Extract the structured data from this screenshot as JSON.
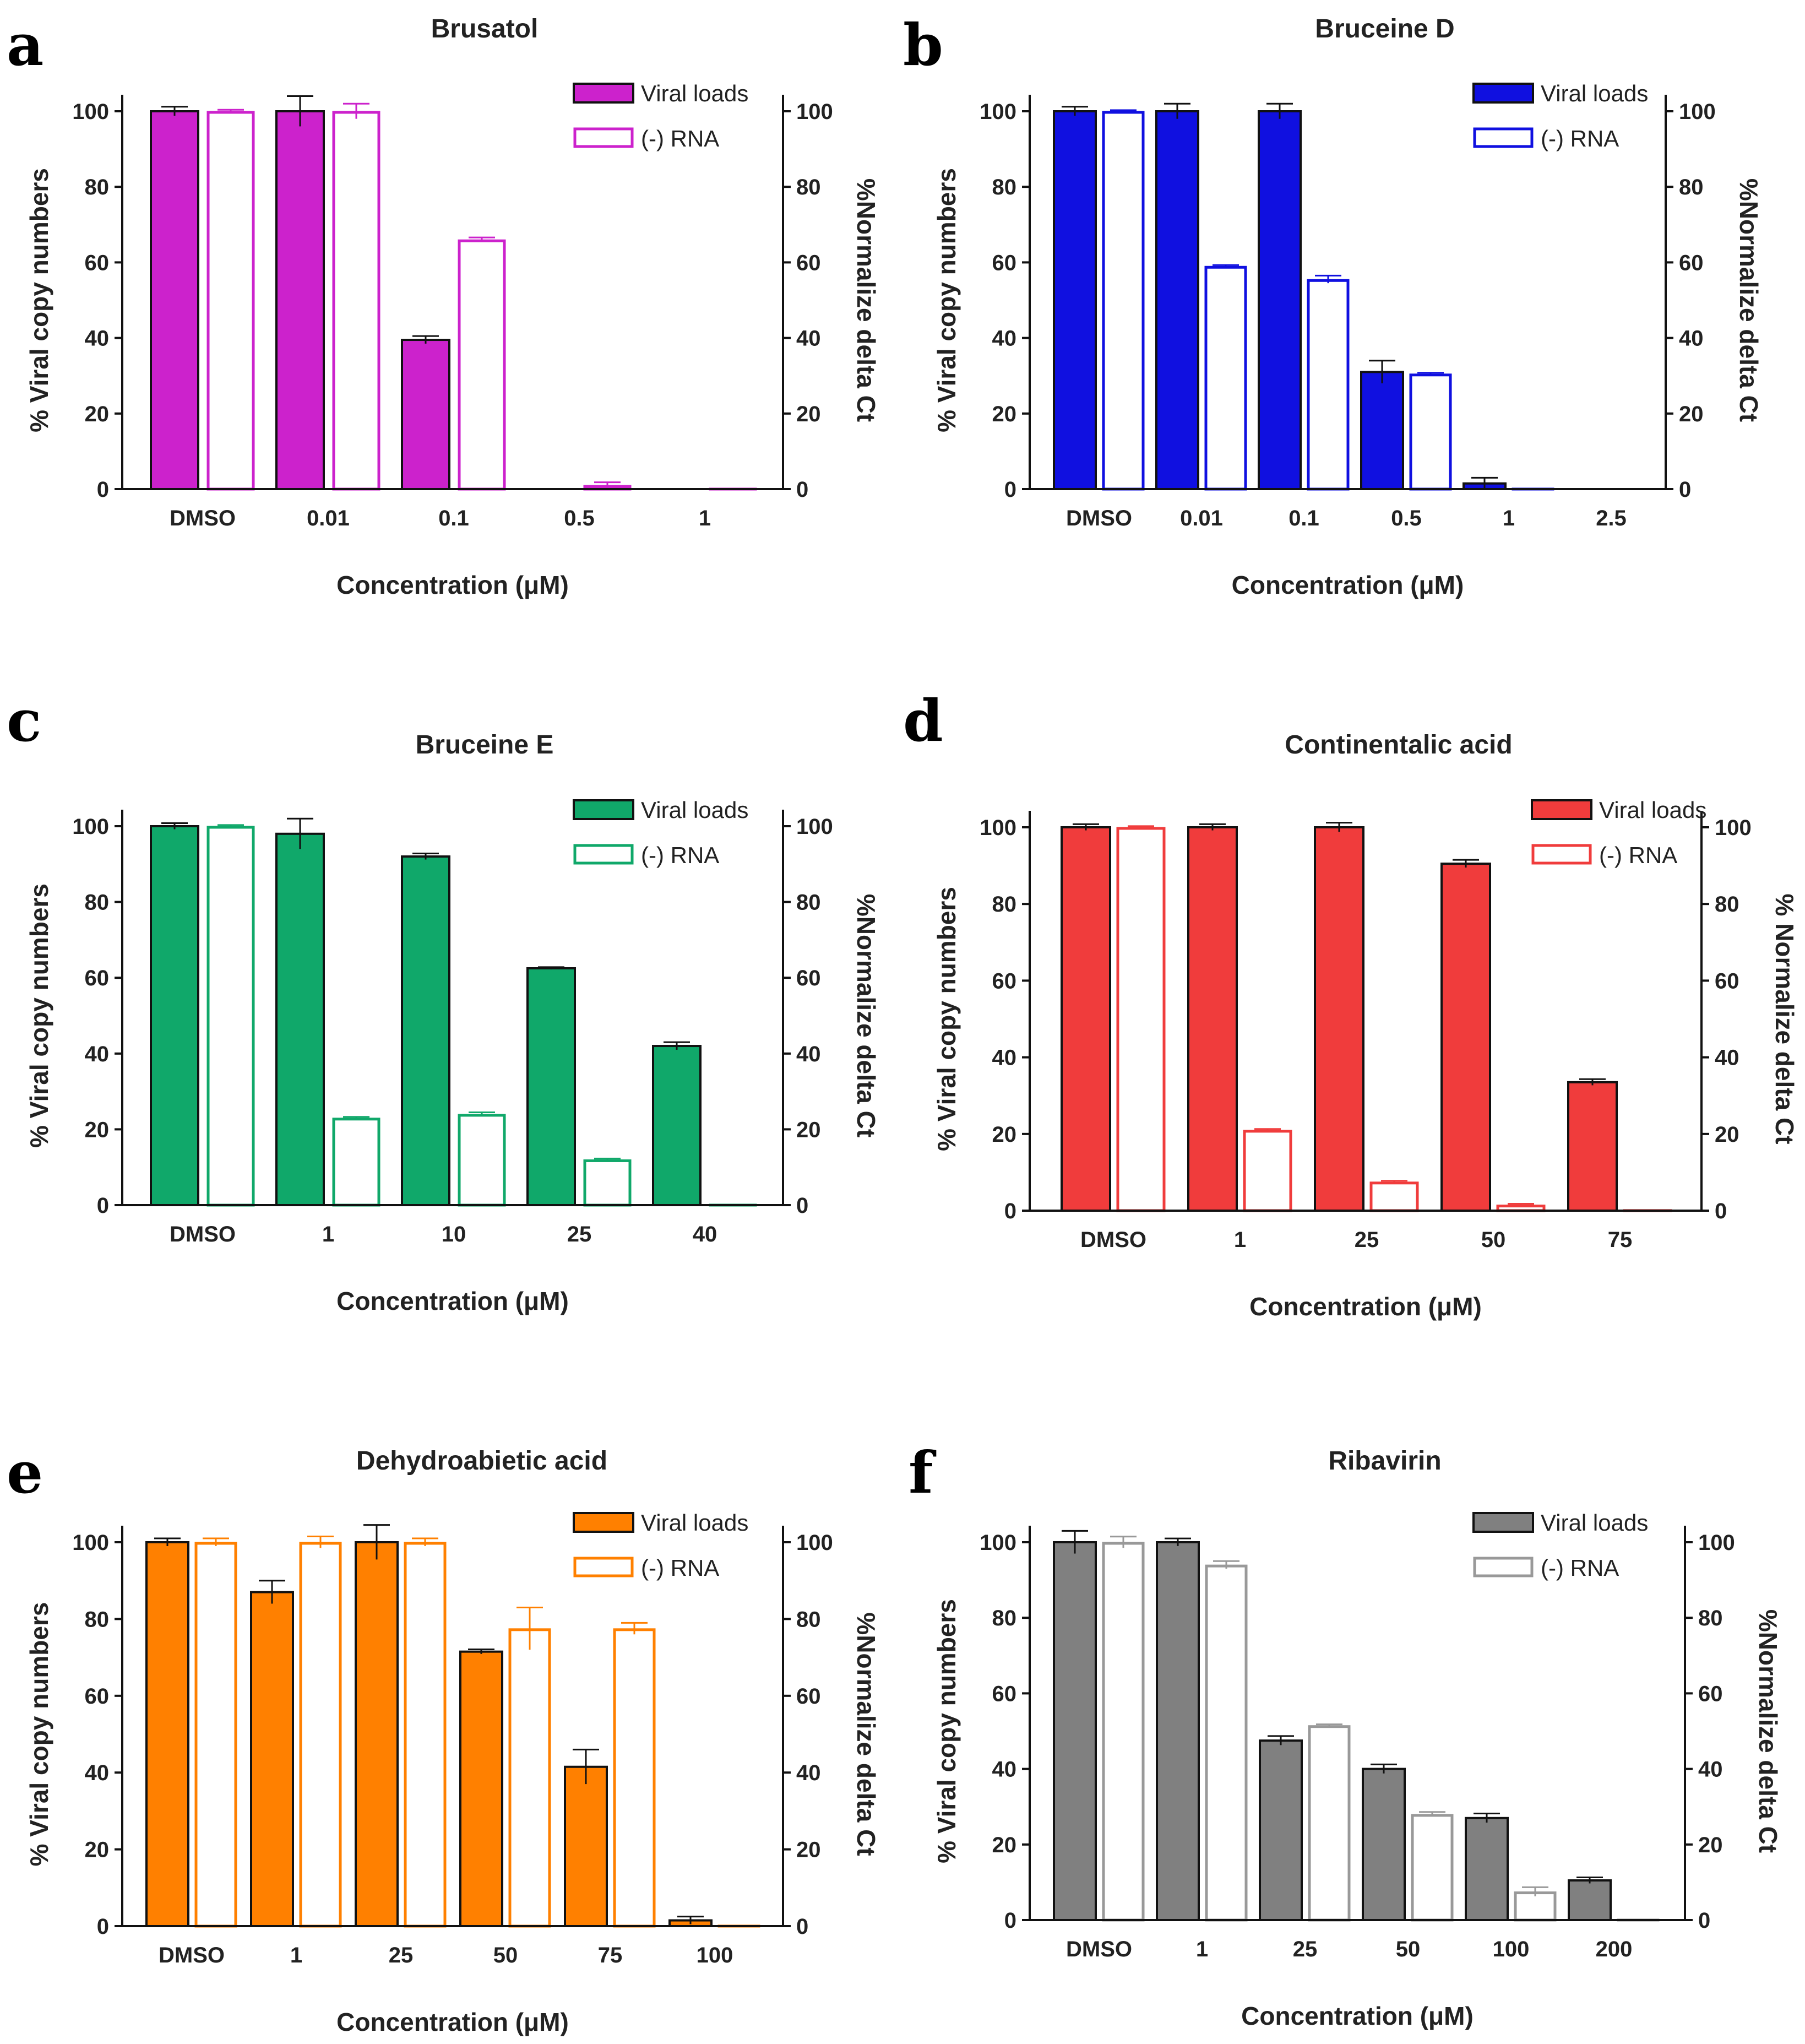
{
  "chart_data": [
    {
      "panel": "a",
      "type": "bar",
      "title": "Brusatol",
      "xlabel": "Concentration (μM)",
      "ylabel": "% Viral copy numbers",
      "ylabel_right": "%Normalize delta Ct",
      "ylim": [
        0,
        100
      ],
      "yticks": [
        0,
        20,
        40,
        60,
        80,
        100
      ],
      "categories": [
        "DMSO",
        "0.01",
        "0.1",
        "0.5",
        "1"
      ],
      "colors": {
        "fill": "#CC22CC",
        "outline": "#CC22CC"
      },
      "legend": [
        "Viral loads",
        "(-) RNA"
      ],
      "series": [
        {
          "name": "Viral loads",
          "style": "filled",
          "values": [
            100,
            100,
            39.5,
            0,
            0
          ],
          "errors": [
            1.2,
            4,
            1,
            0,
            0
          ]
        },
        {
          "name": "(-) RNA",
          "style": "open",
          "values": [
            100,
            100,
            66,
            1,
            0.3
          ],
          "errors": [
            0.4,
            2,
            0.6,
            0.8,
            0.2
          ]
        }
      ]
    },
    {
      "panel": "b",
      "type": "bar",
      "title": "Bruceine D",
      "xlabel": "Concentration (μM)",
      "ylabel": "% Viral copy numbers",
      "ylabel_right": "%Normalize delta Ct",
      "ylim": [
        0,
        100
      ],
      "yticks": [
        0,
        20,
        40,
        60,
        80,
        100
      ],
      "categories": [
        "DMSO",
        "0.01",
        "0.1",
        "0.5",
        "1",
        "2.5"
      ],
      "colors": {
        "fill": "#1010E0",
        "outline": "#1010E0"
      },
      "legend": [
        "Viral loads",
        "(-) RNA"
      ],
      "series": [
        {
          "name": "Viral loads",
          "style": "filled",
          "values": [
            100,
            100,
            100,
            31,
            1.5,
            0
          ],
          "errors": [
            1.2,
            2,
            2,
            3,
            1.5,
            0
          ]
        },
        {
          "name": "(-) RNA",
          "style": "open",
          "values": [
            100,
            59,
            55.5,
            30.5,
            0.3,
            0.2
          ],
          "errors": [
            0.3,
            0.3,
            1,
            0.3,
            0.2,
            0.2
          ]
        }
      ]
    },
    {
      "panel": "c",
      "type": "bar",
      "title": "Bruceine E",
      "xlabel": "Concentration (μM)",
      "ylabel": "% Viral copy numbers",
      "ylabel_right": "%Normalize delta Ct",
      "ylim": [
        0,
        100
      ],
      "yticks": [
        0,
        20,
        40,
        60,
        80,
        100
      ],
      "categories": [
        "DMSO",
        "1",
        "10",
        "25",
        "40"
      ],
      "colors": {
        "fill": "#10A86A",
        "outline": "#10A86A"
      },
      "legend": [
        "Viral loads",
        "(-) RNA"
      ],
      "series": [
        {
          "name": "Viral loads",
          "style": "filled",
          "values": [
            100,
            98,
            92,
            62.5,
            42
          ],
          "errors": [
            0.8,
            4,
            0.8,
            0.3,
            1
          ]
        },
        {
          "name": "(-) RNA",
          "style": "open",
          "values": [
            100,
            23,
            24,
            12,
            0.3
          ],
          "errors": [
            0.3,
            0.3,
            0.5,
            0.3,
            0.2
          ]
        }
      ]
    },
    {
      "panel": "d",
      "type": "bar",
      "title": "Continentalic acid",
      "xlabel": "Concentration (μM)",
      "ylabel": "% Viral copy numbers",
      "ylabel_right": "% Normalize delta Ct",
      "ylim": [
        0,
        100
      ],
      "yticks": [
        0,
        20,
        40,
        60,
        80,
        100
      ],
      "categories": [
        "DMSO",
        "1",
        "25",
        "50",
        "75"
      ],
      "colors": {
        "fill": "#F03C3C",
        "outline": "#F03C3C"
      },
      "legend": [
        "Viral loads",
        "(-) RNA"
      ],
      "series": [
        {
          "name": "Viral loads",
          "style": "filled",
          "values": [
            100,
            100,
            100,
            90.5,
            33.5
          ],
          "errors": [
            0.8,
            0.8,
            1.2,
            1,
            0.8
          ]
        },
        {
          "name": "(-) RNA",
          "style": "open",
          "values": [
            100,
            21,
            7.5,
            1.5,
            0.3
          ],
          "errors": [
            0.3,
            0.3,
            0.3,
            0.3,
            0.2
          ]
        }
      ]
    },
    {
      "panel": "e",
      "type": "bar",
      "title": "Dehydroabietic acid",
      "xlabel": "Concentration (μM)",
      "ylabel": "% Viral copy numbers",
      "ylabel_right": "%Normalize delta Ct",
      "ylim": [
        0,
        100
      ],
      "yticks": [
        0,
        20,
        40,
        60,
        80,
        100
      ],
      "categories": [
        "DMSO",
        "1",
        "25",
        "50",
        "75",
        "100"
      ],
      "colors": {
        "fill": "#FF8000",
        "outline": "#FF8000"
      },
      "legend": [
        "Viral loads",
        "(-) RNA"
      ],
      "series": [
        {
          "name": "Viral loads",
          "style": "filled",
          "values": [
            100,
            87,
            100,
            71.5,
            41.5,
            1.5
          ],
          "errors": [
            1,
            3,
            4.5,
            0.6,
            4.5,
            1
          ]
        },
        {
          "name": "(-) RNA",
          "style": "open",
          "values": [
            100,
            100,
            100,
            77.5,
            77.5,
            0.3
          ],
          "errors": [
            1,
            1.5,
            1,
            5.5,
            1.5,
            0.2
          ]
        }
      ]
    },
    {
      "panel": "f",
      "type": "bar",
      "title": "Ribavirin",
      "xlabel": "Concentration (μM)",
      "ylabel": "% Viral copy numbers",
      "ylabel_right": "%Normalize delta Ct",
      "ylim": [
        0,
        100
      ],
      "yticks": [
        0,
        20,
        40,
        60,
        80,
        100
      ],
      "categories": [
        "DMSO",
        "1",
        "25",
        "50",
        "100",
        "200"
      ],
      "colors": {
        "fill": "#808080",
        "outline": "#999999"
      },
      "legend": [
        "Viral loads",
        "(-) RNA"
      ],
      "series": [
        {
          "name": "Viral loads",
          "style": "filled",
          "values": [
            100,
            100,
            47.5,
            40,
            27,
            10.5
          ],
          "errors": [
            3,
            1,
            1.2,
            1.2,
            1.2,
            0.8
          ]
        },
        {
          "name": "(-) RNA",
          "style": "open",
          "values": [
            100,
            94,
            51.5,
            28,
            7.5,
            0.3
          ],
          "errors": [
            1.5,
            1,
            0.3,
            0.6,
            1.2,
            0.2
          ]
        }
      ]
    }
  ]
}
